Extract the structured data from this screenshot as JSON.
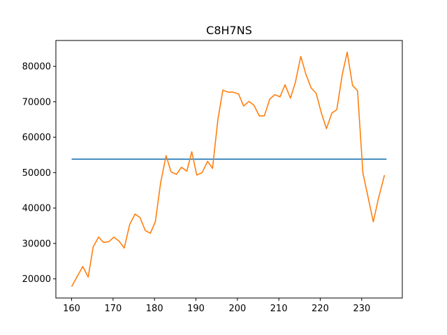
{
  "chart_data": {
    "type": "line",
    "title": "C8H7NS",
    "xlabel": "",
    "ylabel": "",
    "xlim": [
      156.2,
      239.8
    ],
    "ylim": [
      14600,
      87300
    ],
    "grid": false,
    "x_ticks": [
      160,
      170,
      180,
      190,
      200,
      210,
      220,
      230
    ],
    "y_ticks": [
      20000,
      30000,
      40000,
      50000,
      60000,
      70000,
      80000
    ],
    "series": [
      {
        "color": "#1f77b4",
        "points": [
          [
            160,
            53800
          ],
          [
            236,
            53800
          ]
        ]
      },
      {
        "color": "#ff7f0e",
        "points": [
          [
            160,
            17800
          ],
          [
            161.5,
            21000
          ],
          [
            162.7,
            23500
          ],
          [
            164,
            20500
          ],
          [
            165.2,
            29000
          ],
          [
            166.5,
            31800
          ],
          [
            167.7,
            30300
          ],
          [
            169,
            30500
          ],
          [
            170.2,
            31800
          ],
          [
            171.5,
            30600
          ],
          [
            172.7,
            28700
          ],
          [
            174,
            35300
          ],
          [
            175.3,
            38300
          ],
          [
            176.5,
            37300
          ],
          [
            177.8,
            33600
          ],
          [
            179,
            32900
          ],
          [
            180.2,
            36100
          ],
          [
            181.5,
            47300
          ],
          [
            182.8,
            54800
          ],
          [
            184,
            50200
          ],
          [
            185.3,
            49500
          ],
          [
            186.5,
            51500
          ],
          [
            187.8,
            50400
          ],
          [
            189,
            55900
          ],
          [
            190.2,
            49300
          ],
          [
            191.5,
            50000
          ],
          [
            192.8,
            53200
          ],
          [
            194,
            51200
          ],
          [
            195.3,
            65000
          ],
          [
            196.5,
            73300
          ],
          [
            197.8,
            72700
          ],
          [
            199,
            72700
          ],
          [
            200.3,
            72200
          ],
          [
            201.5,
            68800
          ],
          [
            202.8,
            70100
          ],
          [
            204,
            69000
          ],
          [
            205.3,
            66000
          ],
          [
            206.5,
            66000
          ],
          [
            207.8,
            70700
          ],
          [
            209,
            72000
          ],
          [
            210.3,
            71400
          ],
          [
            211.5,
            74800
          ],
          [
            212.8,
            71000
          ],
          [
            214,
            75500
          ],
          [
            215.3,
            82800
          ],
          [
            216.5,
            77900
          ],
          [
            217.8,
            73900
          ],
          [
            219,
            72400
          ],
          [
            220.3,
            66700
          ],
          [
            221.5,
            62400
          ],
          [
            222.8,
            66800
          ],
          [
            224,
            67800
          ],
          [
            225.3,
            77600
          ],
          [
            226.5,
            84000
          ],
          [
            227.8,
            74600
          ],
          [
            229,
            73100
          ],
          [
            230.3,
            49800
          ],
          [
            231.5,
            43300
          ],
          [
            232.8,
            36100
          ],
          [
            234,
            42500
          ],
          [
            235.5,
            49300
          ]
        ]
      }
    ]
  }
}
